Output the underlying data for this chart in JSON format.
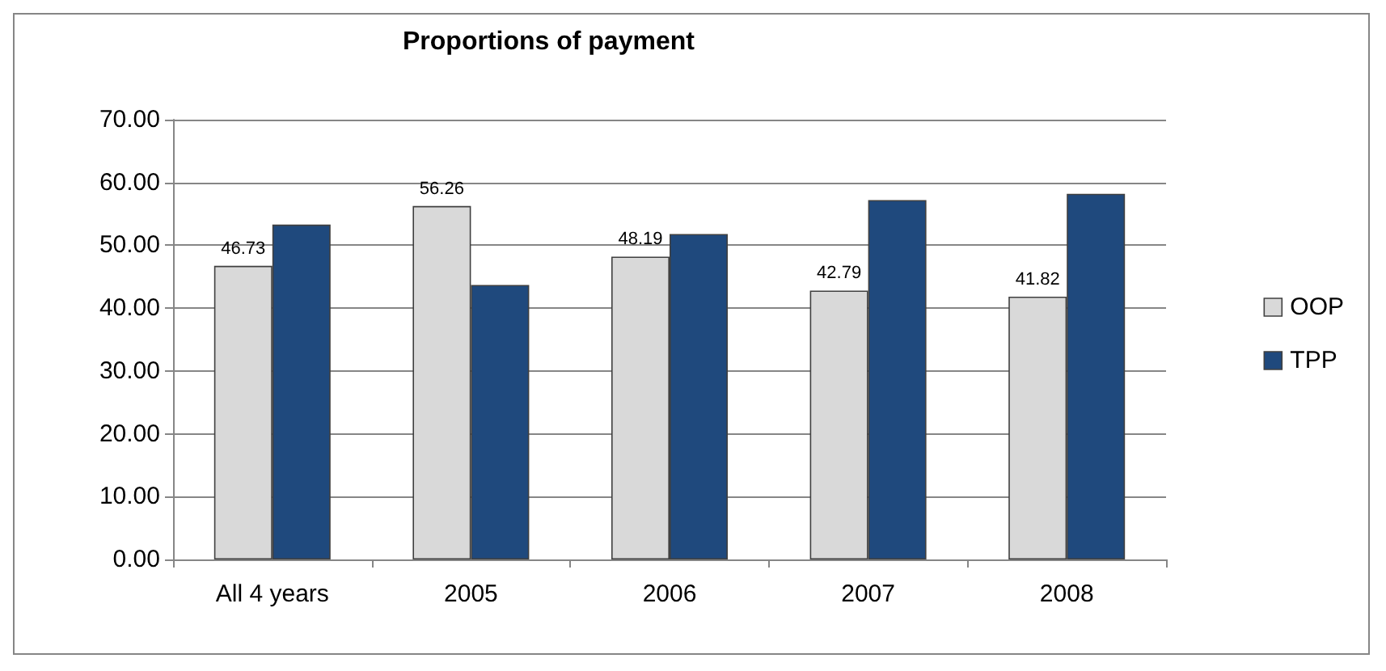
{
  "chart_data": {
    "type": "bar",
    "title": "Proportions of payment",
    "categories": [
      "All 4 years",
      "2005",
      "2006",
      "2007",
      "2008"
    ],
    "series": [
      {
        "name": "OOP",
        "color": "#d9d9d9",
        "values": [
          46.73,
          56.26,
          48.19,
          42.79,
          41.82
        ],
        "value_labels": [
          "46.73",
          "56.26",
          "48.19",
          "42.79",
          "41.82"
        ]
      },
      {
        "name": "TPP",
        "color": "#1f497d",
        "values": [
          53.3,
          43.7,
          51.8,
          57.2,
          58.2
        ]
      }
    ],
    "ylim": [
      0,
      70
    ],
    "yticks": [
      {
        "value": 0,
        "label": "0.00"
      },
      {
        "value": 10,
        "label": "10.00"
      },
      {
        "value": 20,
        "label": "20.00"
      },
      {
        "value": 30,
        "label": "30.00"
      },
      {
        "value": 40,
        "label": "40.00"
      },
      {
        "value": 50,
        "label": "50.00"
      },
      {
        "value": 60,
        "label": "60.00"
      },
      {
        "value": 70,
        "label": "70.00"
      }
    ],
    "grid": "y",
    "legend": "right"
  }
}
